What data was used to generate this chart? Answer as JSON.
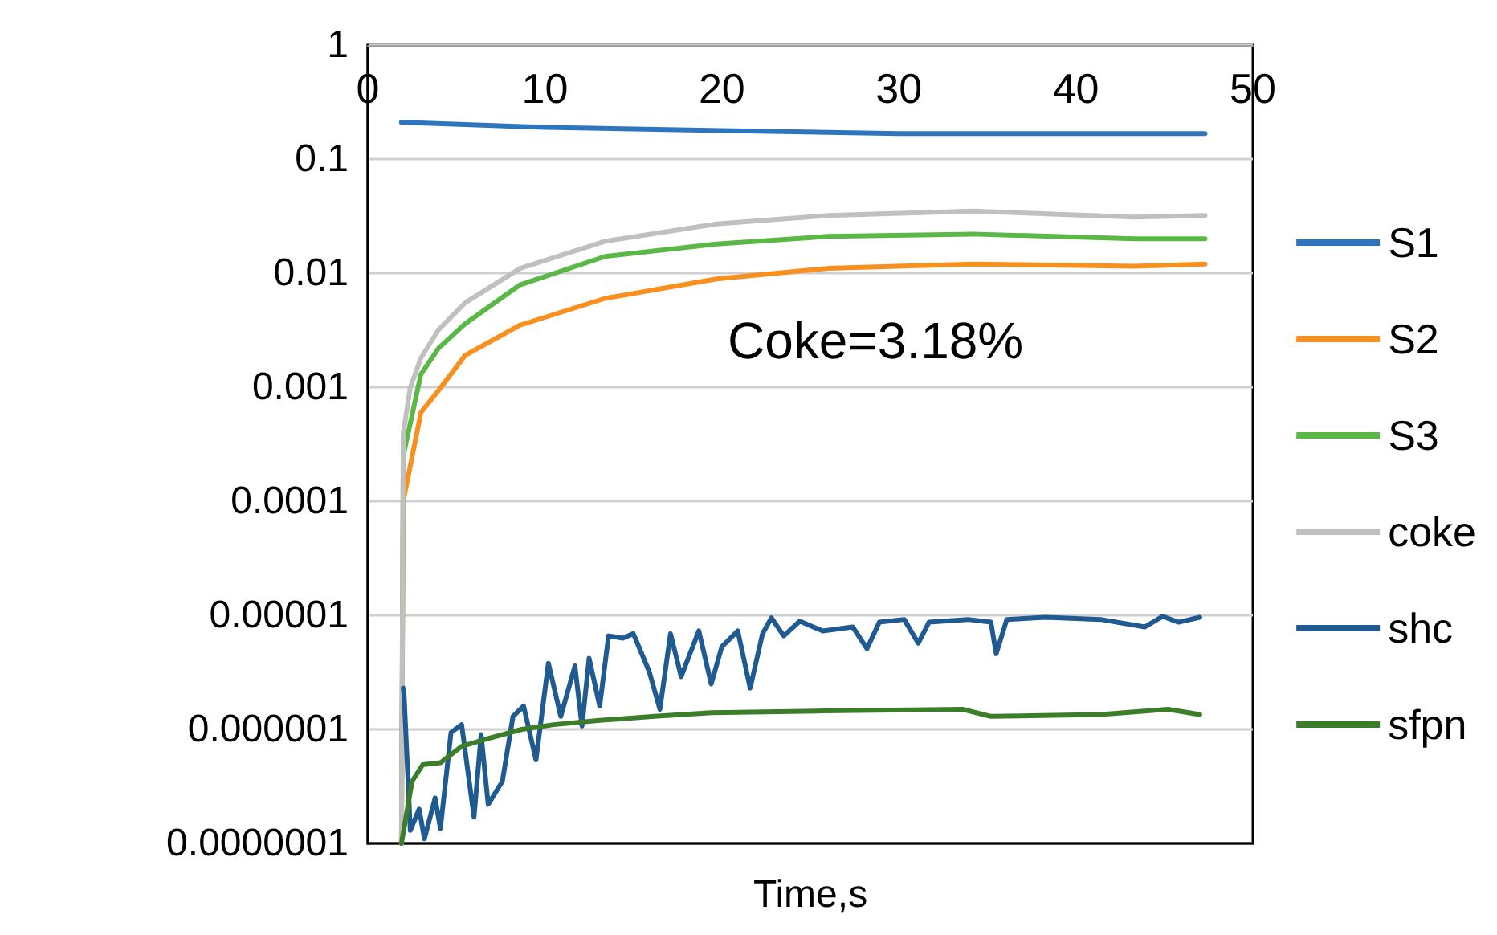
{
  "chart_data": {
    "type": "line",
    "xlabel": "Time,s",
    "log": "y",
    "grid": "y",
    "legend": "right",
    "marker": "none",
    "line_style": "solid",
    "xlim": [
      0,
      50
    ],
    "xticks": [
      0,
      10,
      20,
      30,
      40,
      50
    ],
    "ylim": [
      1e-07,
      1
    ],
    "yticks": [
      {
        "value": 1e-07,
        "label": "0.0000001"
      },
      {
        "value": 1e-06,
        "label": "0.000001"
      },
      {
        "value": 1e-05,
        "label": "0.00001"
      },
      {
        "value": 0.0001,
        "label": "0.0001"
      },
      {
        "value": 0.001,
        "label": "0.001"
      },
      {
        "value": 0.01,
        "label": "0.01"
      },
      {
        "value": 0.1,
        "label": "0.1"
      },
      1
    ],
    "annotations": [
      "Coke=3.18%"
    ],
    "series": [
      {
        "name": "S1",
        "color": "#2e75c0",
        "x": [
          1.9,
          10,
          20,
          30,
          40,
          47.3
        ],
        "values": [
          0.21,
          0.19,
          0.178,
          0.167,
          0.167,
          0.167
        ]
      },
      {
        "name": "S2",
        "color": "#f7901e",
        "x": [
          1.9,
          2.0,
          3.0,
          4.0,
          5.5,
          8.6,
          13.4,
          19.7,
          26,
          34.2,
          43.3,
          47.3
        ],
        "values": [
          1e-07,
          0.0001,
          0.0006,
          0.00094,
          0.0019,
          0.0035,
          0.006,
          0.0089,
          0.011,
          0.012,
          0.0115,
          0.012
        ]
      },
      {
        "name": "S3",
        "color": "#5ab946",
        "x": [
          1.9,
          2.0,
          3.0,
          4.0,
          5.5,
          8.6,
          13.4,
          19.7,
          26,
          34.2,
          43.3,
          47.3
        ],
        "values": [
          1e-07,
          0.00025,
          0.0013,
          0.0022,
          0.0036,
          0.0079,
          0.014,
          0.018,
          0.021,
          0.022,
          0.02,
          0.02
        ]
      },
      {
        "name": "coke",
        "color": "#c0c0c0",
        "x": [
          1.9,
          2.0,
          2.4,
          3.0,
          4.0,
          5.5,
          8.6,
          13.4,
          19.7,
          26,
          34.2,
          43.3,
          47.3
        ],
        "values": [
          1e-07,
          0.00039,
          0.001,
          0.0018,
          0.0032,
          0.0055,
          0.011,
          0.019,
          0.027,
          0.032,
          0.035,
          0.031,
          0.032
        ]
      },
      {
        "name": "shc",
        "color": "#1f5a91",
        "x": [
          2.0,
          2.05,
          2.4,
          2.9,
          3.2,
          3.8,
          4.1,
          4.7,
          5.3,
          6.0,
          6.4,
          6.8,
          7.6,
          8.2,
          8.8,
          9.5,
          10.2,
          10.9,
          11.7,
          12.1,
          12.5,
          13.1,
          13.6,
          14.4,
          15.0,
          15.9,
          16.5,
          17.1,
          17.7,
          18.7,
          19.4,
          20.0,
          20.9,
          21.6,
          22.3,
          22.8,
          23.5,
          24.4,
          25.7,
          27.4,
          28.2,
          28.9,
          30.3,
          31.1,
          31.7,
          33.9,
          35.2,
          35.5,
          36.1,
          38.3,
          41.4,
          43.9,
          44.9,
          45.8,
          47.0
        ],
        "values": [
          2.3e-06,
          2e-06,
          1.3e-07,
          2e-07,
          1.1e-07,
          2.5e-07,
          1.35e-07,
          9.4e-07,
          1.1e-06,
          1.7e-07,
          9e-07,
          2.2e-07,
          3.5e-07,
          1.3e-06,
          1.6e-06,
          5.4e-07,
          3.8e-06,
          1.3e-06,
          3.6e-06,
          1.07e-06,
          4.2e-06,
          1.6e-06,
          6.6e-06,
          6.3e-06,
          6.9e-06,
          3.2e-06,
          1.5e-06,
          6.9e-06,
          2.9e-06,
          7.3e-06,
          2.5e-06,
          5.3e-06,
          7.3e-06,
          2.3e-06,
          6.9e-06,
          9.5e-06,
          6.6e-06,
          8.9e-06,
          7.3e-06,
          7.9e-06,
          5.1e-06,
          8.7e-06,
          9.2e-06,
          5.7e-06,
          8.7e-06,
          9.2e-06,
          8.7e-06,
          4.6e-06,
          9.2e-06,
          9.6e-06,
          9.2e-06,
          7.9e-06,
          9.8e-06,
          8.7e-06,
          9.6e-06
        ]
      },
      {
        "name": "sfpn",
        "color": "#3c7d2a",
        "x": [
          1.9,
          2.5,
          3.1,
          4.1,
          5.3,
          6.8,
          8.7,
          10.5,
          13.1,
          16.2,
          19.4,
          25.7,
          33.6,
          35.2,
          41.4,
          45.2,
          47.0
        ],
        "values": [
          1e-07,
          3.5e-07,
          4.9e-07,
          5.1e-07,
          7.1e-07,
          8.3e-07,
          1e-06,
          1.1e-06,
          1.2e-06,
          1.3e-06,
          1.4e-06,
          1.45e-06,
          1.5e-06,
          1.3e-06,
          1.35e-06,
          1.5e-06,
          1.35e-06
        ]
      }
    ]
  }
}
